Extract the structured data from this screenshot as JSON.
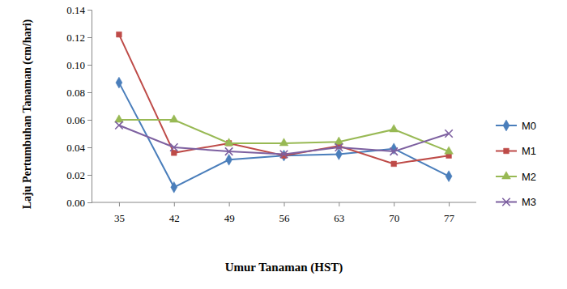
{
  "chart_data": {
    "type": "line",
    "x_label": "Umur Tanaman (HST)",
    "y_label": "Laju Pertumbuhan Tanaman (cm/hari)",
    "categories": [
      "35",
      "42",
      "49",
      "56",
      "63",
      "70",
      "77"
    ],
    "series": [
      {
        "name": "M0",
        "color": "#4a7ebb",
        "marker": "diamond",
        "values": [
          0.087,
          0.011,
          0.031,
          0.034,
          0.035,
          0.039,
          0.019
        ]
      },
      {
        "name": "M1",
        "color": "#be4b48",
        "marker": "square",
        "values": [
          0.122,
          0.036,
          0.043,
          0.034,
          0.041,
          0.028,
          0.034
        ]
      },
      {
        "name": "M2",
        "color": "#98b954",
        "marker": "triangle",
        "values": [
          0.06,
          0.06,
          0.043,
          0.043,
          0.044,
          0.053,
          0.037
        ]
      },
      {
        "name": "M3",
        "color": "#7d60a0",
        "marker": "x",
        "values": [
          0.056,
          0.04,
          0.037,
          0.035,
          0.04,
          0.037,
          0.05
        ]
      }
    ],
    "ylim": [
      0,
      0.14
    ],
    "yticks": [
      {
        "value": 0,
        "label": "0.00"
      },
      {
        "value": 0.02,
        "label": "0.02"
      },
      {
        "value": 0.04,
        "label": "0.04"
      },
      {
        "value": 0.06,
        "label": "0.06"
      },
      {
        "value": 0.08,
        "label": "0.08"
      },
      {
        "value": 0.1,
        "label": "0.10"
      },
      {
        "value": 0.12,
        "label": "0.12"
      },
      {
        "value": 0.14,
        "label": "0.14"
      }
    ],
    "grid": false,
    "legend": "right"
  }
}
